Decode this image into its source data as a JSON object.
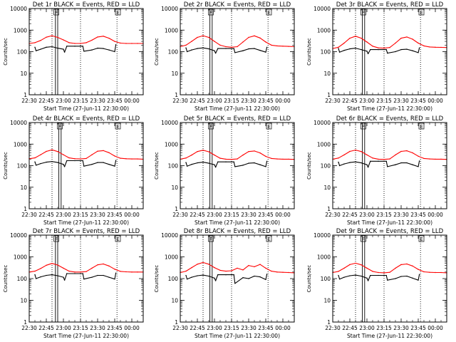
{
  "chart_data": {
    "type": "line",
    "layout": "3x3 grid",
    "common": {
      "ylabel": "Counts/sec",
      "y_scale": "log",
      "ylim": [
        1,
        10000
      ],
      "y_ticks": [
        1,
        10,
        100,
        1000,
        10000
      ],
      "y_tick_labels": [
        "1",
        "10",
        "100",
        "1000",
        "10000"
      ],
      "xlabel": "Start Time (27-Jun-11 22:30:00)",
      "x_unit": "minutes after 22:30",
      "xlim": [
        0,
        100
      ],
      "x_ticks": [
        0,
        15,
        30,
        45,
        60,
        75,
        90
      ],
      "x_tick_labels": [
        "22:30",
        "22:45",
        "23:00",
        "23:15",
        "23:30",
        "23:45",
        "00:00"
      ],
      "flag_labels": {
        "F": "F",
        "E": "E"
      },
      "series_names": [
        "Events",
        "LLD"
      ],
      "series_colors": {
        "Events": "#000000",
        "LLD": "#ff0000"
      }
    },
    "panels": [
      {
        "title": "Det 1r BLACK = Events, RED = LLD",
        "markers": {
          "dotted": [
            20,
            45,
            77
          ],
          "solid": [
            23,
            25
          ],
          "flag_f": 23.5,
          "flag_e": 77.5
        },
        "series": [
          {
            "name": "LLD",
            "x": [
              0,
              5,
              10,
              15,
              20,
              25,
              30,
              35,
              40,
              45,
              50,
              55,
              60,
              65,
              70,
              75,
              80,
              85,
              90,
              95,
              100
            ],
            "values": [
              240,
              260,
              330,
              470,
              550,
              460,
              350,
              260,
              240,
              240,
              260,
              340,
              480,
              520,
              420,
              300,
              250,
              240,
              240,
              240,
              240
            ]
          },
          {
            "name": "Events",
            "x": [
              5,
              6,
              10,
              15,
              20,
              25,
              30,
              31,
              33,
              40,
              45,
              47,
              48,
              55,
              60,
              65,
              70,
              75,
              76
            ],
            "values": [
              160,
              110,
              130,
              160,
              170,
              145,
              130,
              95,
              180,
              180,
              180,
              180,
              105,
              120,
              145,
              140,
              120,
              100,
              210
            ]
          }
        ]
      },
      {
        "title": "Det 2r BLACK = Events, RED = LLD",
        "markers": {
          "dotted": [
            20,
            45,
            77
          ],
          "solid": [
            26,
            28
          ],
          "flag_f": 26.5,
          "flag_e": 77.5
        },
        "series": [
          {
            "name": "LLD",
            "x": [
              0,
              5,
              10,
              15,
              20,
              25,
              30,
              35,
              40,
              45,
              50,
              55,
              60,
              65,
              70,
              75,
              80,
              85,
              90,
              95,
              100
            ],
            "values": [
              170,
              200,
              300,
              460,
              550,
              460,
              300,
              200,
              170,
              160,
              170,
              280,
              460,
              540,
              430,
              280,
              200,
              185,
              180,
              175,
              170
            ]
          },
          {
            "name": "Events",
            "x": [
              5,
              6,
              10,
              15,
              20,
              25,
              30,
              31,
              33,
              40,
              45,
              47,
              48,
              55,
              60,
              65,
              70,
              75,
              76
            ],
            "values": [
              150,
              100,
              120,
              140,
              150,
              135,
              110,
              85,
              140,
              140,
              140,
              140,
              90,
              110,
              135,
              140,
              115,
              95,
              160
            ]
          }
        ]
      },
      {
        "title": "Det 3r BLACK = Events, RED = LLD",
        "markers": {
          "dotted": [
            20,
            45,
            77
          ],
          "solid": [
            26,
            28
          ],
          "flag_f": 26.5,
          "flag_e": 77.5
        },
        "series": [
          {
            "name": "LLD",
            "x": [
              0,
              5,
              10,
              15,
              20,
              25,
              30,
              35,
              40,
              45,
              50,
              55,
              60,
              65,
              70,
              75,
              80,
              85,
              90,
              95,
              100
            ],
            "values": [
              140,
              160,
              250,
              420,
              520,
              420,
              280,
              180,
              150,
              145,
              155,
              250,
              420,
              480,
              380,
              250,
              185,
              165,
              160,
              158,
              155
            ]
          },
          {
            "name": "Events",
            "x": [
              5,
              6,
              10,
              15,
              20,
              25,
              30,
              31,
              33,
              40,
              45,
              47,
              48,
              55,
              60,
              65,
              70,
              75,
              76
            ],
            "values": [
              140,
              95,
              115,
              135,
              145,
              125,
              105,
              80,
              125,
              125,
              125,
              125,
              85,
              100,
              125,
              130,
              110,
              90,
              150
            ]
          }
        ]
      },
      {
        "title": "Det 4r BLACK = Events, RED = LLD",
        "markers": {
          "dotted": [
            20,
            45,
            77
          ],
          "solid": [
            26,
            28
          ],
          "flag_f": 26.5,
          "flag_e": 77.5
        },
        "series": [
          {
            "name": "LLD",
            "x": [
              0,
              5,
              10,
              15,
              20,
              25,
              30,
              35,
              40,
              45,
              50,
              55,
              60,
              65,
              70,
              75,
              80,
              85,
              90,
              95,
              100
            ],
            "values": [
              210,
              230,
              320,
              460,
              540,
              450,
              320,
              230,
              210,
              205,
              215,
              320,
              470,
              500,
              400,
              280,
              220,
              210,
              205,
              205,
              200
            ]
          },
          {
            "name": "Events",
            "x": [
              5,
              6,
              10,
              15,
              20,
              25,
              30,
              31,
              33,
              40,
              45,
              47,
              48,
              55,
              60,
              65,
              70,
              75,
              76
            ],
            "values": [
              150,
              105,
              125,
              145,
              155,
              140,
              115,
              90,
              170,
              170,
              170,
              170,
              95,
              115,
              140,
              140,
              115,
              95,
              175
            ]
          }
        ]
      },
      {
        "title": "Det 5r BLACK = Events, RED = LLD",
        "markers": {
          "dotted": [
            20,
            45,
            77
          ],
          "solid": [
            26,
            28
          ],
          "flag_f": 26.5,
          "flag_e": 77.5
        },
        "series": [
          {
            "name": "LLD",
            "x": [
              0,
              5,
              10,
              15,
              20,
              25,
              30,
              35,
              40,
              45,
              50,
              55,
              60,
              65,
              70,
              75,
              80,
              85,
              90,
              95,
              100
            ],
            "values": [
              200,
              225,
              310,
              450,
              520,
              440,
              310,
              220,
              200,
              195,
              205,
              310,
              450,
              480,
              390,
              270,
              215,
              205,
              200,
              200,
              195
            ]
          },
          {
            "name": "Events",
            "x": [
              5,
              6,
              10,
              15,
              20,
              25,
              30,
              31,
              33,
              40,
              45,
              47,
              48,
              55,
              60,
              65,
              70,
              75,
              76
            ],
            "values": [
              140,
              95,
              115,
              135,
              145,
              130,
              110,
              85,
              150,
              150,
              150,
              150,
              90,
              105,
              130,
              135,
              110,
              90,
              160
            ]
          }
        ]
      },
      {
        "title": "Det 6r BLACK = Events, RED = LLD",
        "markers": {
          "dotted": [
            20,
            45,
            77
          ],
          "solid": [
            26,
            28
          ],
          "flag_f": 26.5,
          "flag_e": 77.5
        },
        "series": [
          {
            "name": "LLD",
            "x": [
              0,
              5,
              10,
              15,
              20,
              25,
              30,
              35,
              40,
              45,
              50,
              55,
              60,
              65,
              70,
              75,
              80,
              85,
              90,
              95,
              100
            ],
            "values": [
              200,
              225,
              315,
              460,
              530,
              450,
              315,
              225,
              200,
              195,
              205,
              315,
              460,
              490,
              395,
              275,
              215,
              205,
              200,
              200,
              195
            ]
          },
          {
            "name": "Events",
            "x": [
              5,
              6,
              10,
              15,
              20,
              25,
              30,
              31,
              33,
              40,
              45,
              47,
              48,
              55,
              60,
              65,
              70,
              75,
              76
            ],
            "values": [
              145,
              100,
              120,
              140,
              150,
              135,
              110,
              85,
              160,
              160,
              160,
              160,
              90,
              110,
              135,
              135,
              110,
              90,
              165
            ]
          }
        ]
      },
      {
        "title": "Det 7r BLACK = Events, RED = LLD",
        "markers": {
          "dotted": [
            20,
            45,
            77
          ],
          "solid": [
            23,
            25
          ],
          "flag_f": 23.5,
          "flag_e": 77.5
        },
        "series": [
          {
            "name": "LLD",
            "x": [
              0,
              5,
              10,
              15,
              20,
              25,
              30,
              35,
              40,
              45,
              50,
              55,
              60,
              65,
              70,
              75,
              80,
              85,
              90,
              95,
              100
            ],
            "values": [
              200,
              220,
              290,
              410,
              500,
              420,
              300,
              220,
              200,
              200,
              210,
              300,
              430,
              470,
              380,
              270,
              215,
              205,
              200,
              200,
              200
            ]
          },
          {
            "name": "Events",
            "x": [
              5,
              6,
              10,
              15,
              20,
              25,
              30,
              31,
              33,
              40,
              45,
              47,
              48,
              55,
              60,
              65,
              70,
              75,
              76
            ],
            "values": [
              150,
              100,
              120,
              140,
              150,
              135,
              115,
              85,
              170,
              170,
              170,
              170,
              95,
              115,
              140,
              140,
              115,
              95,
              180
            ]
          }
        ]
      },
      {
        "title": "Det 8r BLACK = Events, RED = LLD",
        "markers": {
          "dotted": [
            20,
            45,
            77
          ],
          "solid": [
            26,
            28
          ],
          "flag_f": 26.5,
          "flag_e": 77.5
        },
        "series": [
          {
            "name": "LLD",
            "x": [
              0,
              5,
              10,
              15,
              20,
              25,
              30,
              35,
              40,
              45,
              50,
              55,
              60,
              65,
              70,
              75,
              80,
              85,
              90,
              95,
              100
            ],
            "values": [
              190,
              220,
              320,
              460,
              550,
              460,
              320,
              240,
              220,
              230,
              300,
              250,
              400,
              350,
              450,
              300,
              220,
              200,
              195,
              190,
              185
            ]
          },
          {
            "name": "Events",
            "x": [
              5,
              6,
              10,
              15,
              20,
              25,
              30,
              31,
              33,
              40,
              45,
              47,
              48,
              55,
              60,
              65,
              70,
              75,
              76
            ],
            "values": [
              140,
              95,
              115,
              135,
              145,
              130,
              105,
              80,
              150,
              150,
              150,
              150,
              60,
              110,
              100,
              130,
              120,
              90,
              160
            ]
          }
        ]
      },
      {
        "title": "Det 9r BLACK = Events, RED = LLD",
        "markers": {
          "dotted": [
            20,
            45,
            77
          ],
          "solid": [
            26,
            28
          ],
          "flag_f": 26.5,
          "flag_e": 77.5
        },
        "series": [
          {
            "name": "LLD",
            "x": [
              0,
              5,
              10,
              15,
              20,
              25,
              30,
              35,
              40,
              45,
              50,
              55,
              60,
              65,
              70,
              75,
              80,
              85,
              90,
              95,
              100
            ],
            "values": [
              190,
              215,
              300,
              440,
              510,
              430,
              300,
              215,
              190,
              185,
              195,
              300,
              440,
              470,
              380,
              265,
              205,
              195,
              190,
              190,
              185
            ]
          },
          {
            "name": "Events",
            "x": [
              5,
              6,
              10,
              15,
              20,
              25,
              30,
              31,
              33,
              40,
              45,
              47,
              48,
              55,
              60,
              65,
              70,
              75,
              76
            ],
            "values": [
              140,
              95,
              115,
              135,
              145,
              130,
              105,
              80,
              140,
              140,
              140,
              140,
              85,
              100,
              125,
              130,
              105,
              85,
              155
            ]
          }
        ]
      }
    ]
  }
}
